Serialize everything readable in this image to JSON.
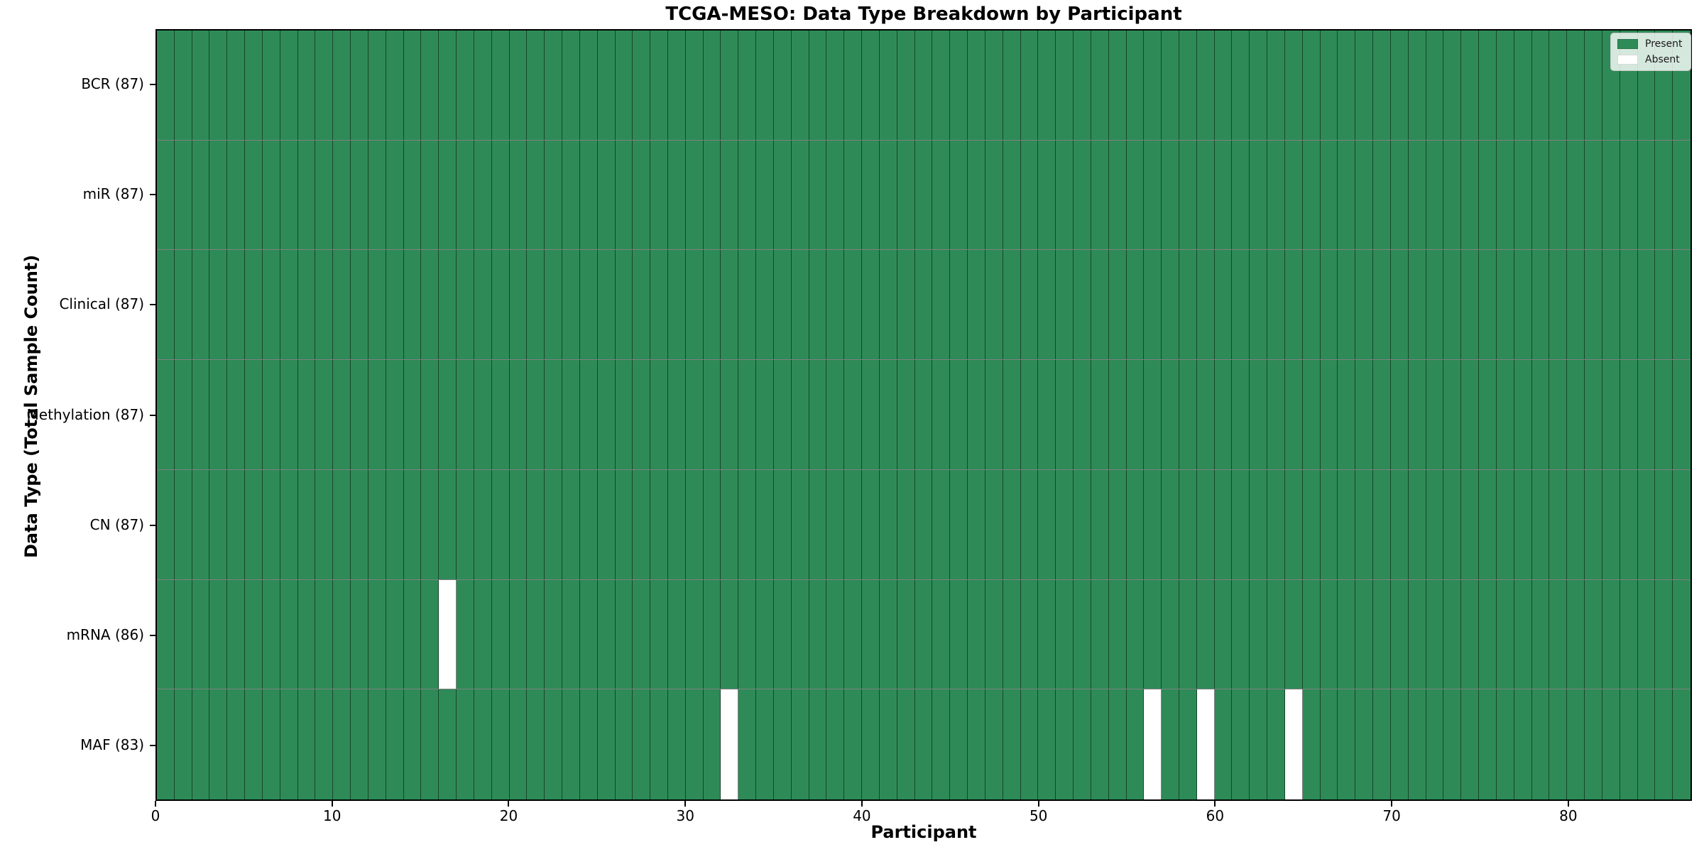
{
  "chart_data": {
    "type": "heatmap",
    "title": "TCGA-MESO: Data Type Breakdown by Participant",
    "xlabel": "Participant",
    "ylabel": "Data Type (Total Sample Count)",
    "x_ticks": [
      0,
      10,
      20,
      30,
      40,
      50,
      60,
      70,
      80
    ],
    "x_range": [
      0,
      87
    ],
    "n_participants": 87,
    "grid": true,
    "rows": [
      {
        "label": "BCR (87)",
        "data_type": "BCR",
        "present_count": 87,
        "absent_participants": []
      },
      {
        "label": "miR (87)",
        "data_type": "miR",
        "present_count": 87,
        "absent_participants": []
      },
      {
        "label": "Clinical (87)",
        "data_type": "Clinical",
        "present_count": 87,
        "absent_participants": []
      },
      {
        "label": "Methylation (87)",
        "data_type": "Methylation",
        "present_count": 87,
        "absent_participants": []
      },
      {
        "label": "CN (87)",
        "data_type": "CN",
        "present_count": 87,
        "absent_participants": []
      },
      {
        "label": "mRNA (86)",
        "data_type": "mRNA",
        "present_count": 86,
        "absent_participants": [
          16
        ]
      },
      {
        "label": "MAF (83)",
        "data_type": "MAF",
        "present_count": 83,
        "absent_participants": [
          32,
          56,
          59,
          64
        ]
      }
    ],
    "legend": {
      "position": "upper right",
      "entries": [
        {
          "label": "Present",
          "color": "#2e8b57"
        },
        {
          "label": "Absent",
          "color": "#ffffff"
        }
      ]
    },
    "colors": {
      "present": "#2e8b57",
      "absent": "#ffffff",
      "grid_line": "rgba(0,0,0,0.5)",
      "spine": "#000000",
      "background": "#ffffff"
    }
  }
}
